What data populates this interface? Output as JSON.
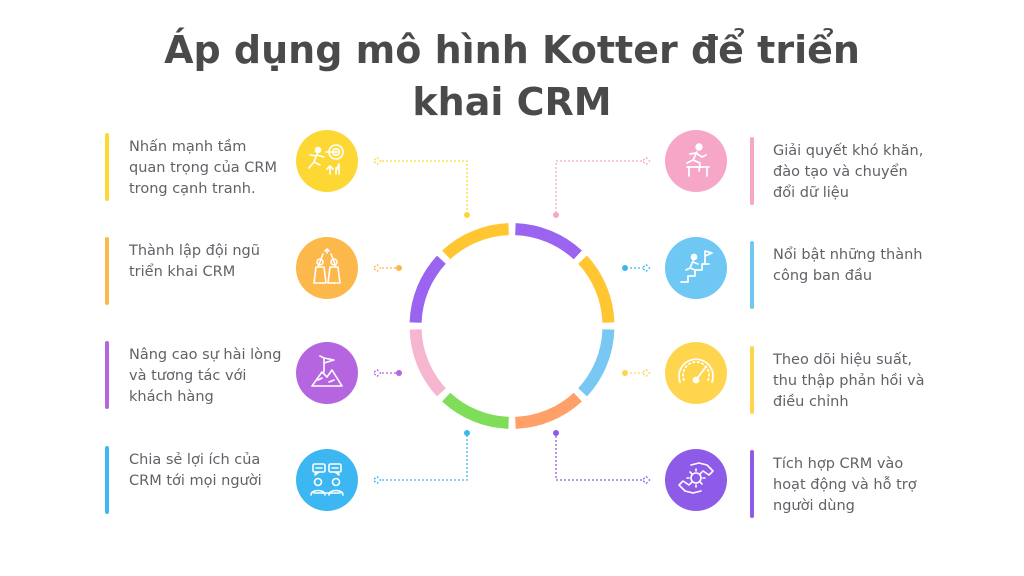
{
  "title": "Áp dụng mô hình Kotter để triển khai CRM",
  "colors": {
    "yellow": "#fdd835",
    "orange": "#fcb84a",
    "purple": "#b565e0",
    "blue": "#3db7f2",
    "pink": "#f6a6c6",
    "sky": "#6ec8f3",
    "gold": "#fed54c",
    "violet": "#8e5be8",
    "ring_violet": "#9a63f0",
    "ring_yellow": "#ffc631",
    "ring_sky": "#78c8f3",
    "ring_orange": "#ffa069",
    "ring_green": "#7fdd5a",
    "ring_pink": "#f6b6d0"
  },
  "left_items": [
    {
      "text": "Nhấn mạnh tầm\nquan trọng của CRM\ntrong cạnh tranh.",
      "icon": "running-target-icon"
    },
    {
      "text": "Thành lập đội ngũ\ntriển khai CRM",
      "icon": "team-highfive-icon"
    },
    {
      "text": "Nâng cao sự hài lòng\nvà tương tác với\nkhách hàng",
      "icon": "mountain-flag-icon"
    },
    {
      "text": "Chia sẻ lợi ích của\nCRM tới mọi người",
      "icon": "people-chat-icon"
    }
  ],
  "right_items": [
    {
      "text": "Giải quyết khó khăn,\nđào tạo và chuyển\nđổi dữ liệu",
      "icon": "hurdle-runner-icon"
    },
    {
      "text": "Nổi bật những thành\ncông ban đầu",
      "icon": "stairs-flag-icon"
    },
    {
      "text": "Theo dõi hiệu suất,\nthu thập phản hồi và\nđiều chỉnh",
      "icon": "gauge-icon"
    },
    {
      "text": "Tích hợp CRM vào\nhoạt động và hỗ trợ\nngười dùng",
      "icon": "hands-gear-icon"
    }
  ]
}
